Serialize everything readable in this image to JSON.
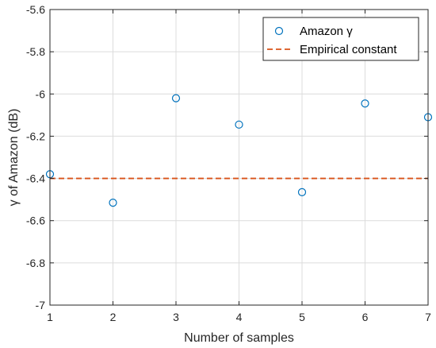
{
  "chart_data": {
    "type": "scatter",
    "title": "",
    "xlabel": "Number of samples",
    "ylabel": "γ of Amazon (dB)",
    "xlim": [
      1,
      7
    ],
    "ylim": [
      -7,
      -5.6
    ],
    "xticks": [
      1,
      2,
      3,
      4,
      5,
      6,
      7
    ],
    "xtick_labels": [
      "1",
      "2",
      "3",
      "4",
      "5",
      "6",
      "7"
    ],
    "yticks": [
      -7,
      -6.8,
      -6.6,
      -6.4,
      -6.2,
      -6,
      -5.8,
      -5.6
    ],
    "ytick_labels": [
      "-7",
      "-6.8",
      "-6.6",
      "-6.4",
      "-6.2",
      "-6",
      "-5.8",
      "-5.6"
    ],
    "grid": true,
    "legend_position": "top-right",
    "series": [
      {
        "name": "Amazon γ",
        "kind": "scatter",
        "marker": "circle",
        "color": "#0072BD",
        "x": [
          1,
          2,
          3,
          4,
          5,
          6,
          7
        ],
        "y": [
          -6.38,
          -6.515,
          -6.02,
          -6.145,
          -6.465,
          -6.045,
          -6.11
        ]
      },
      {
        "name": "Empirical constant",
        "kind": "hline",
        "style": "dashed",
        "color": "#D95319",
        "value": -6.4
      }
    ]
  }
}
